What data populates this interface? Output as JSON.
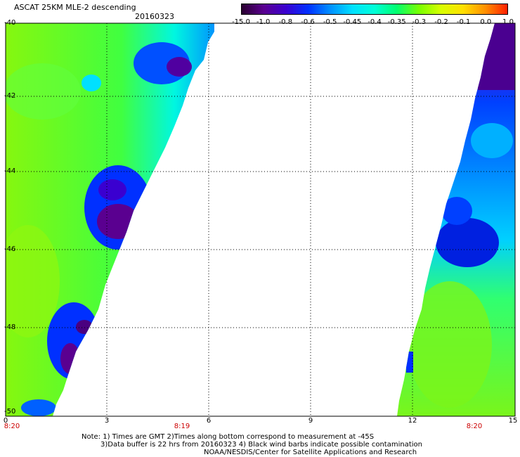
{
  "title": "ASCAT 25KM MLE-2 descending",
  "date": "20160323",
  "colorbar": {
    "labels": [
      "-15.0",
      "-1.0",
      "-0.8",
      "-0.6",
      "-0.5",
      "-0.45",
      "-0.4",
      "-0.35",
      "-0.3",
      "-0.2",
      "-0.1",
      "0.0",
      "1.0"
    ],
    "colors": [
      "#2a0030",
      "#5a0090",
      "#3a00d0",
      "#0030ff",
      "#0090ff",
      "#00e0ff",
      "#00ffd8",
      "#00ff70",
      "#78ff00",
      "#d8ff00",
      "#ffe000",
      "#ff9000",
      "#ff2000"
    ]
  },
  "map": {
    "y_labels": [
      "-40",
      "-42",
      "-44",
      "-46",
      "-48",
      "-50"
    ],
    "x_labels": [
      "0",
      "3",
      "6",
      "9",
      "12",
      "15"
    ],
    "time_labels": [
      "8:20",
      "8:19",
      "8:20"
    ]
  },
  "notes": {
    "line1": "Note: 1) Times are GMT 2)Times along bottom correspond to measurement at -45S",
    "line2": "3)Data buffer is 22 hrs from 20160323 4) Black wind barbs indicate possible contamination",
    "line3": "NOAA/NESDIS/Center for Satellite Applications and Research"
  }
}
